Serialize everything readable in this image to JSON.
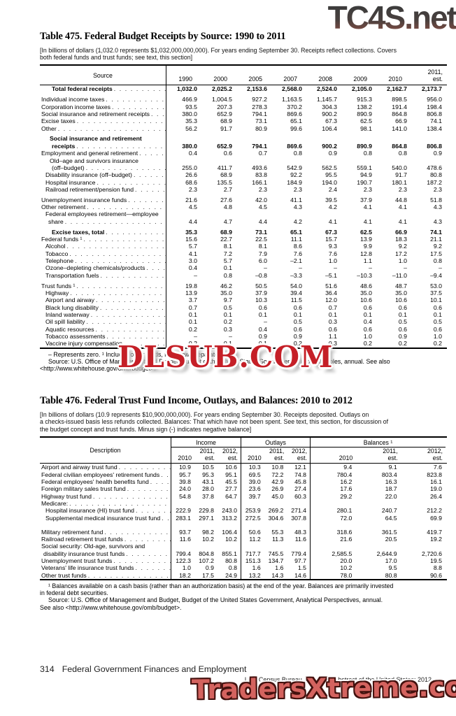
{
  "watermarks": {
    "top": "TC4S.net",
    "middle": "DLSUB.COM",
    "bottom": "TradersXtreme.com"
  },
  "table475": {
    "title": "Table 475. Federal Budget Receipts by Source: 1990 to 2011",
    "headnote_lines": [
      "[In billions of dollars (1,032.0 represents $1,032,000,000,000). For years ending September 30. Receipts reflect collections. Covers",
      "both federal funds and trust funds; see text, this section]"
    ],
    "col_header": "Source",
    "years": [
      "1990",
      "2000",
      "2005",
      "2007",
      "2008",
      "2009",
      "2010"
    ],
    "last_year_lines": [
      "2011,",
      "est."
    ],
    "rows": [
      {
        "label": "Total federal receipts",
        "bold": true,
        "ind": 17,
        "values": [
          "1,032.0",
          "2,025.2",
          "2,153.6",
          "2,568.0",
          "2,524.0",
          "2,105.0",
          "2,162.7",
          "2,173.7"
        ]
      },
      {
        "gap": true,
        "label": "Individual income taxes",
        "ind": 2,
        "values": [
          "466.9",
          "1,004.5",
          "927.2",
          "1,163.5",
          "1,145.7",
          "915.3",
          "898.5",
          "956.0"
        ]
      },
      {
        "label": "Corporation income taxes",
        "ind": 2,
        "values": [
          "93.5",
          "207.3",
          "278.3",
          "370.2",
          "304.3",
          "138.2",
          "191.4",
          "198.4"
        ]
      },
      {
        "label": "Social insurance and retirement receipts",
        "ind": 2,
        "values": [
          "380.0",
          "652.9",
          "794.1",
          "869.6",
          "900.2",
          "890.9",
          "864.8",
          "806.8"
        ]
      },
      {
        "label": "Excise taxes",
        "ind": 2,
        "values": [
          "35.3",
          "68.9",
          "73.1",
          "65.1",
          "67.3",
          "62.5",
          "66.9",
          "74.1"
        ]
      },
      {
        "label": "Other",
        "ind": 2,
        "values": [
          "56.2",
          "91.7",
          "80.9",
          "99.6",
          "106.4",
          "98.1",
          "141.0",
          "138.4"
        ]
      },
      {
        "gap": true,
        "pre": "Social insurance and retirement",
        "pre_ind": 14,
        "bold": true,
        "label": "receipts",
        "ind": 17,
        "values": [
          "380.0",
          "652.9",
          "794.1",
          "869.6",
          "900.2",
          "890.9",
          "864.8",
          "806.8"
        ]
      },
      {
        "label": "Employment and general retirement",
        "ind": 2,
        "values": [
          "0.4",
          "0.6",
          "0.7",
          "0.8",
          "0.9",
          "0.8",
          "0.8",
          "0.9"
        ]
      },
      {
        "pre": "Old–age and survivors insurance",
        "pre_ind": 14,
        "label": "(off–budget)",
        "ind": 17,
        "values": [
          "255.0",
          "411.7",
          "493.6",
          "542.9",
          "562.5",
          "559.1",
          "540.0",
          "478.6"
        ]
      },
      {
        "label": "Disability insurance (off–budget)",
        "ind": 8,
        "values": [
          "26.6",
          "68.9",
          "83.8",
          "92.2",
          "95.5",
          "94.9",
          "91.7",
          "80.8"
        ]
      },
      {
        "label": "Hospital insurance",
        "ind": 8,
        "values": [
          "68.6",
          "135.5",
          "166.1",
          "184.9",
          "194.0",
          "190.7",
          "180.1",
          "187.2"
        ]
      },
      {
        "label": "Railroad retirement/pension fund",
        "ind": 8,
        "values": [
          "2.3",
          "2.7",
          "2.3",
          "2.3",
          "2.4",
          "2.3",
          "2.3",
          "2.3"
        ]
      },
      {
        "gap": true,
        "label": "Unemployment insurance funds",
        "ind": 2,
        "values": [
          "21.6",
          "27.6",
          "42.0",
          "41.1",
          "39.5",
          "37.9",
          "44.8",
          "51.8"
        ]
      },
      {
        "label": "Other retirement",
        "ind": 2,
        "values": [
          "4.5",
          "4.8",
          "4.5",
          "4.3",
          "4.2",
          "4.1",
          "4.1",
          "4.3"
        ]
      },
      {
        "pre": "Federal employees retirement—employee",
        "pre_ind": 8,
        "label": "share",
        "ind": 12,
        "values": [
          "4.4",
          "4.7",
          "4.4",
          "4.2",
          "4.1",
          "4.1",
          "4.1",
          "4.3"
        ]
      },
      {
        "gap": true,
        "label": "Excise taxes, total",
        "bold": true,
        "ind": 17,
        "values": [
          "35.3",
          "68.9",
          "73.1",
          "65.1",
          "67.3",
          "62.5",
          "66.9",
          "74.1"
        ]
      },
      {
        "label": "Federal funds ¹",
        "ind": 2,
        "values": [
          "15.6",
          "22.7",
          "22.5",
          "11.1",
          "15.7",
          "13.9",
          "18.3",
          "21.1"
        ]
      },
      {
        "label": "Alcohol",
        "ind": 8,
        "values": [
          "5.7",
          "8.1",
          "8.1",
          "8.6",
          "9.3",
          "9.9",
          "9.2",
          "9.2"
        ]
      },
      {
        "label": "Tobacco",
        "ind": 8,
        "values": [
          "4.1",
          "7.2",
          "7.9",
          "7.6",
          "7.6",
          "12.8",
          "17.2",
          "17.5"
        ]
      },
      {
        "label": "Telephone",
        "ind": 8,
        "values": [
          "3.0",
          "5.7",
          "6.0",
          "–2.1",
          "1.0",
          "1.1",
          "1.0",
          "0.8"
        ]
      },
      {
        "label": "Ozone–depleting chemicals/products",
        "ind": 8,
        "values": [
          "0.4",
          "0.1",
          "–",
          "–",
          "–",
          "–",
          "–",
          "–"
        ]
      },
      {
        "label": "Transportation fuels",
        "ind": 8,
        "values": [
          "–",
          "0.8",
          "–0.8",
          "–3.3",
          "–5.1",
          "–10.3",
          "–11.0",
          "–9.4"
        ]
      },
      {
        "gap": true,
        "label": "Trust funds ¹",
        "ind": 2,
        "values": [
          "19.8",
          "46.2",
          "50.5",
          "54.0",
          "51.6",
          "48.6",
          "48.7",
          "53.0"
        ]
      },
      {
        "label": "Highway",
        "ind": 8,
        "values": [
          "13.9",
          "35.0",
          "37.9",
          "39.4",
          "36.4",
          "35.0",
          "35.0",
          "37.5"
        ]
      },
      {
        "label": "Airport and airway",
        "ind": 8,
        "values": [
          "3.7",
          "9.7",
          "10.3",
          "11.5",
          "12.0",
          "10.6",
          "10.6",
          "10.1"
        ]
      },
      {
        "label": "Black lung disability",
        "ind": 8,
        "values": [
          "0.7",
          "0.5",
          "0.6",
          "0.6",
          "0.7",
          "0.6",
          "0.6",
          "0.6"
        ]
      },
      {
        "label": "Inland waterway",
        "ind": 8,
        "values": [
          "0.1",
          "0.1",
          "0.1",
          "0.1",
          "0.1",
          "0.1",
          "0.1",
          "0.1"
        ]
      },
      {
        "label": "Oil spill liability",
        "ind": 8,
        "values": [
          "0.1",
          "0.2",
          "–",
          "0.5",
          "0.3",
          "0.4",
          "0.5",
          "0.5"
        ]
      },
      {
        "label": "Aquatic resources",
        "ind": 8,
        "values": [
          "0.2",
          "0.3",
          "0.4",
          "0.6",
          "0.6",
          "0.6",
          "0.6",
          "0.6"
        ]
      },
      {
        "label": "Tobacco assessments",
        "ind": 8,
        "values": [
          "–",
          "–",
          "0.9",
          "0.9",
          "1.1",
          "1.0",
          "0.9",
          "1.0"
        ]
      },
      {
        "label": "Vaccine injury compensation",
        "ind": 8,
        "values": [
          "0.2",
          "0.1",
          "0.1",
          "0.2",
          "0.3",
          "0.2",
          "0.2",
          "0.2"
        ]
      }
    ],
    "footnote_lines": [
      "– Represents zero. ¹ Includes other funds, not shown separately."
    ],
    "source_lines": [
      "Source: U.S. Office of Management and Budget, Budget of the United States Government, Historical Tables, annual. See also",
      "<http://www.whitehouse.gov/omb/budget>."
    ]
  },
  "table476": {
    "title": "Table 476. Federal Trust Fund Income, Outlays, and Balances: 2010 to 2012",
    "headnote_lines": [
      "[In billions of dollars (10.9 represents $10,900,000,000). For years ending September 30. Receipts deposited. Outlays on",
      "a checks-issued basis less refunds collected. Balances: That which have not been spent. See text, this section, for discussion of",
      "the budget concept and trust funds. Minus sign (-) indicates negative balance]"
    ],
    "col_header": "Description",
    "groups": [
      {
        "key": "income",
        "label": "Income"
      },
      {
        "key": "outlays",
        "label": "Outlays"
      },
      {
        "key": "balances",
        "label": "Balances ¹"
      }
    ],
    "sub_cols": [
      [
        " ",
        "2010"
      ],
      [
        "2011,",
        "est."
      ],
      [
        "2012,",
        "est."
      ]
    ],
    "rows": [
      {
        "label": "Airport and airway trust fund",
        "ind": 2,
        "values": [
          "10.9",
          "10.5",
          "10.6",
          "10.3",
          "10.8",
          "12.1",
          "9.4",
          "9.1",
          "7.6"
        ]
      },
      {
        "label": "Federal civilian employees' retirement funds",
        "ind": 2,
        "values": [
          "95.7",
          "95.3",
          "95.1",
          "69.5",
          "72.2",
          "74.8",
          "780.4",
          "803.4",
          "823.8"
        ]
      },
      {
        "label": "Federal employees' health benefits fund",
        "ind": 2,
        "values": [
          "39.8",
          "43.1",
          "45.5",
          "39.0",
          "42.9",
          "45.8",
          "16.2",
          "16.3",
          "16.1"
        ]
      },
      {
        "label": "Foreign military sales trust fund",
        "ind": 2,
        "values": [
          "24.0",
          "28.0",
          "27.7",
          "23.6",
          "26.9",
          "27.4",
          "17.6",
          "18.7",
          "19.0"
        ]
      },
      {
        "label": "Highway trust fund",
        "ind": 2,
        "values": [
          "54.8",
          "37.8",
          "64.7",
          "39.7",
          "45.0",
          "60.3",
          "29.2",
          "22.0",
          "26.4"
        ]
      },
      {
        "label": "Medicare:",
        "ind": 2,
        "values": [
          "",
          "",
          "",
          "",
          "",
          "",
          "",
          "",
          ""
        ]
      },
      {
        "label": "Hospital insurance (HI) trust fund",
        "ind": 8,
        "values": [
          "222.9",
          "229.8",
          "243.0",
          "253.9",
          "269.2",
          "271.4",
          "280.1",
          "240.7",
          "212.2"
        ]
      },
      {
        "label": "Supplemental medical insurance trust fund",
        "ind": 8,
        "values": [
          "283.1",
          "297.1",
          "313.2",
          "272.5",
          "304.6",
          "307.8",
          "72.0",
          "64.5",
          "69.9"
        ]
      },
      {
        "gap": true,
        "label": "Military retirement fund",
        "ind": 2,
        "values": [
          "93.7",
          "98.2",
          "106.4",
          "50.6",
          "55.3",
          "48.3",
          "318.6",
          "361.5",
          "419.7"
        ]
      },
      {
        "label": "Railroad retirement trust funds",
        "ind": 2,
        "values": [
          "11.6",
          "10.2",
          "10.2",
          "11.2",
          "11.3",
          "11.6",
          "21.6",
          "20.5",
          "19.2"
        ]
      },
      {
        "pre": "Social security: Old-age, survivors and",
        "pre_ind": 2,
        "label": "disability insurance trust funds",
        "ind": 5,
        "values": [
          "799.4",
          "804.8",
          "855.1",
          "717.7",
          "745.5",
          "779.4",
          "2,585.5",
          "2,644.9",
          "2,720.6"
        ]
      },
      {
        "label": "Unemployment trust funds",
        "ind": 2,
        "values": [
          "122.3",
          "107.2",
          "80.8",
          "151.3",
          "134.7",
          "97.7",
          "20.0",
          "17.0",
          "19.5"
        ]
      },
      {
        "label": "Veterans' life insurance trust funds",
        "ind": 2,
        "values": [
          "1.0",
          "0.9",
          "0.8",
          "1.6",
          "1.6",
          "1.5",
          "10.2",
          "9.5",
          "8.8"
        ]
      },
      {
        "label": "Other trust funds",
        "ind": 2,
        "values": [
          "18.2",
          "17.5",
          "24.9",
          "13.2",
          "14.3",
          "14.6",
          "78.0",
          "80.8",
          "90.6"
        ]
      }
    ],
    "footnote_lines": [
      "¹ Balances available on a cash basis (rather than an authorization basis) at the end of the year. Balances are primarily invested",
      "in federal debt securities."
    ],
    "source_lines": [
      "Source: U.S. Office of Management and Budget, Budget of the United States Government, Analytical Perspectives, annual.",
      "See also <http://www.whitehouse.gov/omb/budget>."
    ]
  },
  "footer": {
    "page": "314",
    "section": "Federal Government Finances and Employment",
    "attribution": "U.S. Census Bureau, Statistical Abstract of the United States: 2012"
  }
}
